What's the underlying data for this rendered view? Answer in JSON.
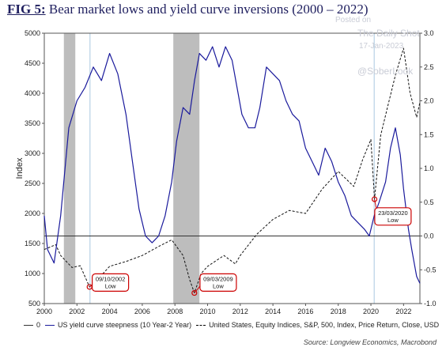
{
  "title": {
    "fig": "FIG 5:",
    "text": " Bear market lows and yield curve inversions (2000 – 2022)"
  },
  "watermark": {
    "line1": "Posted on",
    "line2": "The Daily Shot",
    "date": "17-Jan-2023",
    "handle": "@SoberLook"
  },
  "source": "Source: Longview Economics, Macrobond",
  "legend": [
    {
      "label": "0",
      "color": "#333333",
      "style": "solid"
    },
    {
      "label": "US yield curve steepness (10 Year-2 Year)",
      "color": "#1a1a9c",
      "style": "solid"
    },
    {
      "label": "United States, Equity Indices, S&P, 500, Index, Price Return, Close, USD",
      "color": "#000000",
      "style": "dashed"
    }
  ],
  "chart_data": {
    "type": "line",
    "ylabel": "Index",
    "x_ticks": [
      "2000",
      "2002",
      "2004",
      "2006",
      "2008",
      "2010",
      "2012",
      "2014",
      "2016",
      "2018",
      "2020",
      "2022"
    ],
    "ylim_left": [
      500,
      5000
    ],
    "yticks_left": [
      500,
      1000,
      1500,
      2000,
      2500,
      3000,
      3500,
      4000,
      4500,
      5000
    ],
    "ylim_right": [
      -1.0,
      3.0
    ],
    "yticks_right": [
      "-1.0",
      "-0.5",
      "0.0",
      "0.5",
      "1.0",
      "1.5",
      "2.0",
      "2.5",
      "3.0"
    ],
    "xlim": [
      2000.0,
      2023.0
    ],
    "shaded_periods": [
      [
        2001.2,
        2001.9
      ],
      [
        2007.9,
        2009.5
      ]
    ],
    "vertical_lines": [
      2002.8,
      2020.2
    ],
    "series": [
      {
        "name": "United States, Equity Indices, S&P, 500, Index, Price Return, Close, USD",
        "axis": "left",
        "x": [
          2000.0,
          2000.7,
          2001.0,
          2001.7,
          2002.2,
          2002.77,
          2003.2,
          2004.0,
          2005.0,
          2006.0,
          2007.0,
          2007.8,
          2008.5,
          2008.9,
          2009.19,
          2009.6,
          2010.0,
          2011.0,
          2011.7,
          2012.0,
          2013.0,
          2014.0,
          2015.0,
          2016.0,
          2017.0,
          2018.0,
          2018.95,
          2019.5,
          2020.0,
          2020.22,
          2020.6,
          2021.0,
          2021.5,
          2022.0,
          2022.4,
          2022.8,
          2023.0
        ],
        "y": [
          1400,
          1480,
          1300,
          1100,
          1130,
          777,
          880,
          1120,
          1200,
          1300,
          1450,
          1560,
          1300,
          900,
          677,
          1000,
          1120,
          1300,
          1160,
          1300,
          1650,
          1900,
          2050,
          2000,
          2400,
          2700,
          2450,
          2900,
          3230,
          2237,
          3300,
          3750,
          4300,
          4750,
          4000,
          3600,
          3850
        ]
      },
      {
        "name": "US yield curve steepness (10 Year-2 Year)",
        "axis": "right",
        "x": [
          2000.0,
          2000.2,
          2000.6,
          2001.0,
          2001.5,
          2002.0,
          2002.5,
          2003.0,
          2003.5,
          2004.0,
          2004.5,
          2005.0,
          2005.4,
          2005.8,
          2006.2,
          2006.6,
          2007.0,
          2007.4,
          2007.8,
          2008.1,
          2008.5,
          2008.9,
          2009.2,
          2009.5,
          2009.9,
          2010.3,
          2010.7,
          2011.1,
          2011.5,
          2011.8,
          2012.1,
          2012.5,
          2012.9,
          2013.2,
          2013.6,
          2014.0,
          2014.4,
          2014.8,
          2015.2,
          2015.6,
          2016.0,
          2016.4,
          2016.8,
          2017.2,
          2017.6,
          2018.0,
          2018.4,
          2018.8,
          2019.2,
          2019.6,
          2019.9,
          2020.2,
          2020.5,
          2020.9,
          2021.2,
          2021.5,
          2021.8,
          2022.0,
          2022.3,
          2022.5,
          2022.8,
          2023.0
        ],
        "y": [
          0.3,
          -0.2,
          -0.4,
          0.3,
          1.6,
          2.0,
          2.2,
          2.5,
          2.3,
          2.7,
          2.4,
          1.8,
          1.1,
          0.4,
          0.0,
          -0.1,
          0.0,
          0.3,
          0.8,
          1.4,
          1.9,
          1.8,
          2.3,
          2.7,
          2.6,
          2.8,
          2.5,
          2.8,
          2.6,
          2.2,
          1.8,
          1.6,
          1.6,
          1.9,
          2.5,
          2.4,
          2.3,
          2.0,
          1.8,
          1.7,
          1.3,
          1.1,
          0.9,
          1.3,
          1.1,
          0.8,
          0.6,
          0.3,
          0.2,
          0.1,
          0.0,
          0.3,
          0.5,
          0.8,
          1.3,
          1.6,
          1.2,
          0.7,
          0.1,
          -0.2,
          -0.6,
          -0.7
        ]
      }
    ],
    "annotations": [
      {
        "text": "09/10/2002",
        "sub": "Low",
        "x": 2002.77,
        "y": 777,
        "axis": "left",
        "box_x": 2004.0,
        "box_y": 850
      },
      {
        "text": "09/03/2009",
        "sub": "Low",
        "x": 2009.19,
        "y": 677,
        "axis": "left",
        "box_x": 2010.6,
        "box_y": 850
      },
      {
        "text": "23/03/2020",
        "sub": "Low",
        "x": 2020.22,
        "y": 2237,
        "axis": "left",
        "box_x": 2021.3,
        "box_y": 1950
      }
    ]
  }
}
